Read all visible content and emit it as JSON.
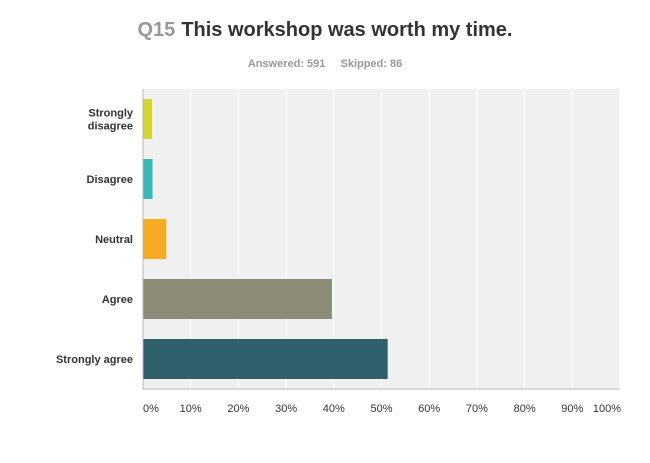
{
  "question": {
    "number": "Q15",
    "text": "This workshop was worth my time."
  },
  "stats": {
    "answered": "Answered: 591",
    "skipped": "Skipped: 86"
  },
  "colors": {
    "plot_bg": "#f0f0f0",
    "gridline": "#ffffff",
    "axis": "#b8b8b8"
  },
  "chart_data": {
    "type": "bar",
    "orientation": "horizontal",
    "categories": [
      [
        "Strongly",
        "disagree"
      ],
      [
        "Disagree"
      ],
      [
        "Neutral"
      ],
      [
        "Agree"
      ],
      [
        "Strongly agree"
      ]
    ],
    "values": [
      1.9,
      2.0,
      4.9,
      39.6,
      51.3
    ],
    "bar_colors": [
      "#d5d431",
      "#3ab8b8",
      "#f5ab22",
      "#8b8b77",
      "#2e5f6b"
    ],
    "xlim": [
      0,
      100
    ],
    "xticks": [
      0,
      10,
      20,
      30,
      40,
      50,
      60,
      70,
      80,
      90,
      100
    ],
    "xtick_labels": [
      "0%",
      "10%",
      "20%",
      "30%",
      "40%",
      "50%",
      "60%",
      "70%",
      "80%",
      "90%",
      "100%"
    ],
    "grid": true
  }
}
